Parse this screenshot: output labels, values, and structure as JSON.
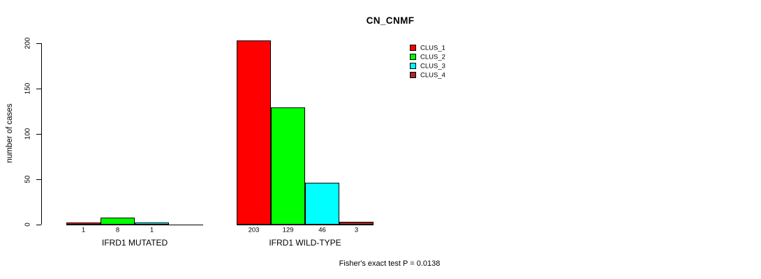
{
  "chart_data": {
    "type": "bar",
    "title": "CN_CNMF",
    "ylabel": "number of cases",
    "xlabel": "",
    "categories": [
      "IFRD1 MUTATED",
      "IFRD1 WILD-TYPE"
    ],
    "series": [
      {
        "name": "CLUS_1",
        "color": "#ff0000",
        "values": [
          1,
          203
        ]
      },
      {
        "name": "CLUS_2",
        "color": "#00ff00",
        "values": [
          8,
          129
        ]
      },
      {
        "name": "CLUS_3",
        "color": "#00ffff",
        "values": [
          1,
          46
        ]
      },
      {
        "name": "CLUS_4",
        "color": "#a52a2a",
        "values": [
          0,
          3
        ]
      }
    ],
    "bar_value_labels": [
      [
        "1",
        "8",
        "1",
        ""
      ],
      [
        "203",
        "129",
        "46",
        "3"
      ]
    ],
    "ylim": [
      0,
      200
    ],
    "yticks": [
      0,
      50,
      100,
      150,
      200
    ],
    "grid": false,
    "legend_position": "top-right",
    "legend_entries": [
      "CLUS_1",
      "CLUS_2",
      "CLUS_3",
      "CLUS_4"
    ],
    "annotation": "Fisher's exact test P = 0.0138"
  }
}
